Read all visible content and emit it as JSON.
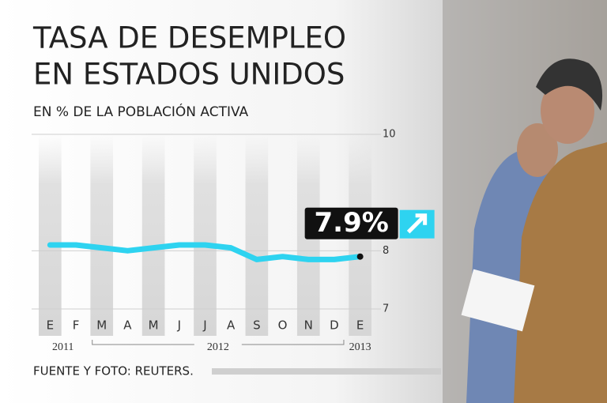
{
  "chart_data": {
    "type": "line",
    "title": [
      "TASA DE DESEMPLEO",
      "EN ESTADOS UNIDOS"
    ],
    "subtitle": "EN % DE LA POBLACIÓN ACTIVA",
    "categories": [
      "E",
      "F",
      "M",
      "A",
      "M",
      "J",
      "J",
      "A",
      "S",
      "O",
      "N",
      "D",
      "E"
    ],
    "year_labels": [
      "2011",
      "2012",
      "2013"
    ],
    "series": [
      {
        "name": "Tasa de desempleo",
        "color": "#2ed3f0",
        "values": [
          8.1,
          8.1,
          8.05,
          8.0,
          8.05,
          8.1,
          8.1,
          8.05,
          7.85,
          7.9,
          7.85,
          7.85,
          7.9
        ],
        "value_labels": [
          null,
          null,
          null,
          null,
          null,
          null,
          null,
          null,
          null,
          null,
          null,
          null,
          "7.9%"
        ]
      }
    ],
    "ylim": [
      7,
      10
    ],
    "yticks": [
      7,
      8,
      10
    ],
    "source": "FUENTE Y FOTO: REUTERS."
  }
}
